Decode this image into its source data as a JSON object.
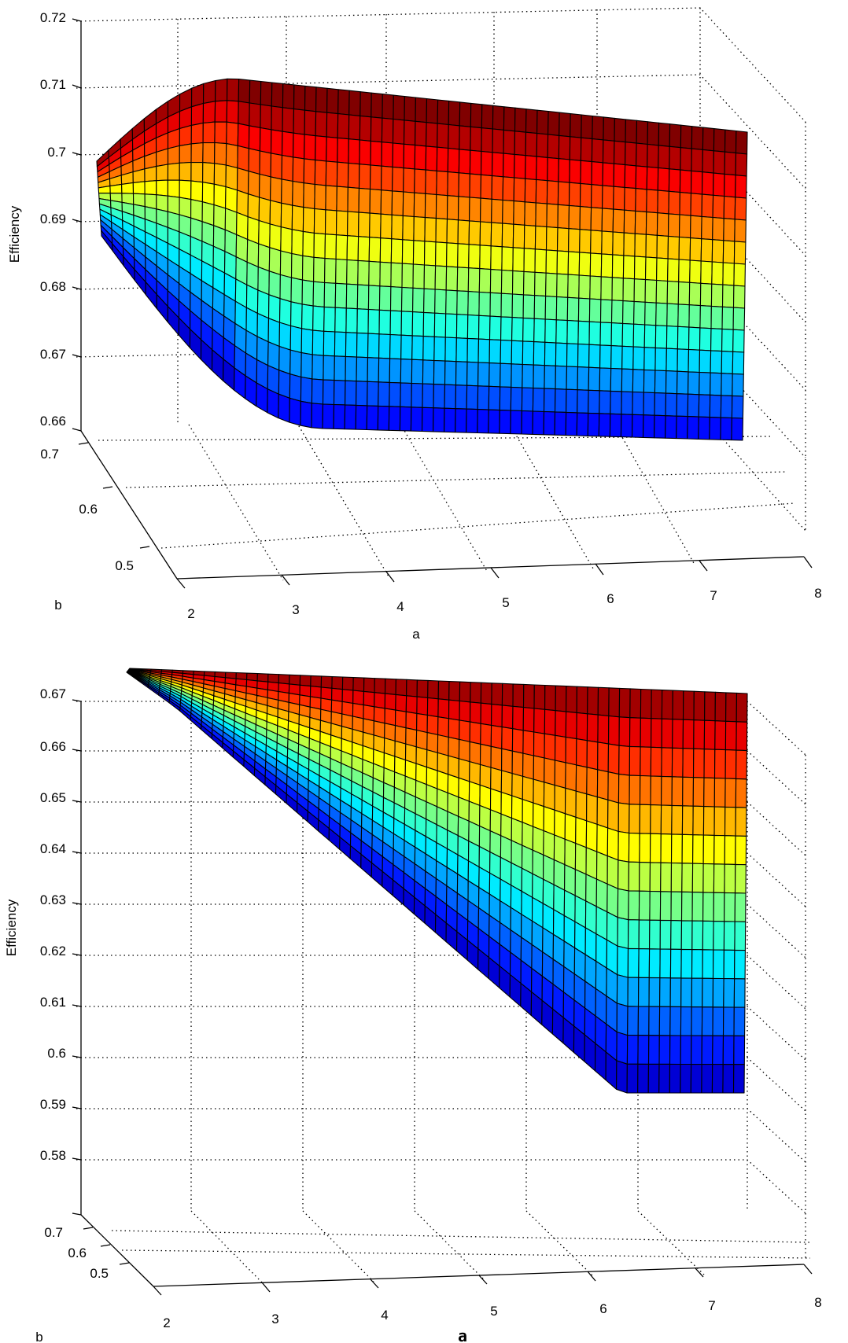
{
  "chart_data": [
    {
      "type": "surface",
      "title": "",
      "xlabel": "a",
      "ylabel": "b",
      "zlabel": "Efficiency",
      "x_ticks": [
        "2",
        "3",
        "4",
        "5",
        "6",
        "7",
        "8"
      ],
      "y_ticks": [
        "0.5",
        "0.6",
        "0.7"
      ],
      "z_ticks": [
        "0.66",
        "0.67",
        "0.68",
        "0.69",
        "0.7",
        "0.71",
        "0.72"
      ],
      "xlim": [
        2,
        8
      ],
      "ylim": [
        0.45,
        0.75
      ],
      "zlim": [
        0.66,
        0.72
      ],
      "grid": true,
      "colormap": "jet",
      "series": [
        {
          "points": [
            {
              "a": 2,
              "b": 0.7,
              "efficiency": 0.688
            },
            {
              "a": 2.3,
              "b": 0.55,
              "efficiency": 0.711
            },
            {
              "a": 3,
              "b": 0.7,
              "efficiency": 0.668
            },
            {
              "a": 8,
              "b": 0.7,
              "efficiency": 0.662
            },
            {
              "a": 8,
              "b": 0.55,
              "efficiency": 0.701
            }
          ]
        }
      ]
    },
    {
      "type": "surface",
      "title": "",
      "xlabel": "a",
      "ylabel": "b",
      "zlabel": "Efficiency",
      "x_ticks": [
        "2",
        "3",
        "4",
        "5",
        "6",
        "7",
        "8"
      ],
      "y_ticks": [
        "0.5",
        "0.6",
        "0.7"
      ],
      "z_ticks": [
        "0.58",
        "0.59",
        "0.6",
        "0.61",
        "0.62",
        "0.63",
        "0.64",
        "0.65",
        "0.66",
        "0.67"
      ],
      "xlim": [
        2,
        8
      ],
      "ylim": [
        0.45,
        0.75
      ],
      "zlim": [
        0.57,
        0.67
      ],
      "grid": true,
      "colormap": "jet",
      "series": [
        {
          "points": [
            {
              "a": 2.5,
              "b": 0.5,
              "efficiency": 0.665
            },
            {
              "a": 8,
              "b": 0.5,
              "efficiency": 0.66
            },
            {
              "a": 5.3,
              "b": 0.7,
              "efficiency": 0.581
            },
            {
              "a": 8,
              "b": 0.7,
              "efficiency": 0.572
            }
          ]
        }
      ]
    }
  ]
}
